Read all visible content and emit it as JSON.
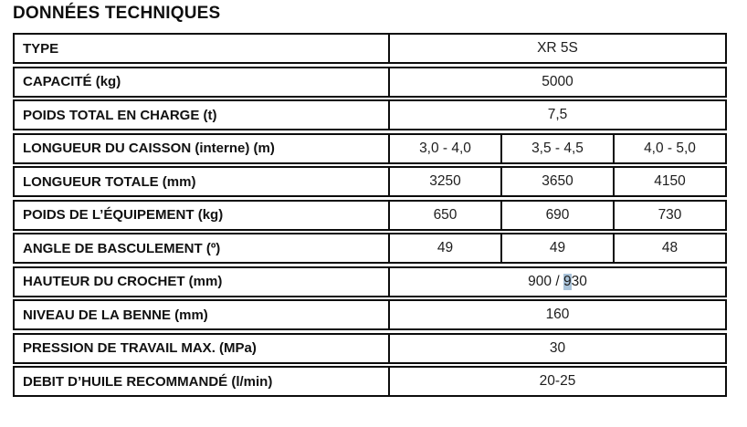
{
  "title": "DONNÉES TECHNIQUES",
  "colors": {
    "selection_highlight": "#a9c3da",
    "border": "#0c0c0c",
    "text": "#111111"
  },
  "table": {
    "rows": [
      {
        "label": "TYPE",
        "value": "XR 5S"
      },
      {
        "label": "CAPACITÉ (kg)",
        "value": "5000"
      },
      {
        "label": "POIDS TOTAL EN CHARGE (t)",
        "value": "7,5"
      },
      {
        "label": "LONGUEUR DU CAISSON (interne) (m)",
        "values": [
          "3,0 - 4,0",
          "3,5 - 4,5",
          "4,0 - 5,0"
        ]
      },
      {
        "label": "LONGUEUR TOTALE (mm)",
        "values": [
          "3250",
          "3650",
          "4150"
        ]
      },
      {
        "label": "POIDS DE L’ÉQUIPEMENT (kg)",
        "values": [
          "650",
          "690",
          "730"
        ]
      },
      {
        "label": "ANGLE DE BASCULEMENT (º)",
        "values": [
          "49",
          "49",
          "48"
        ]
      },
      {
        "label": "HAUTEUR DU CROCHET (mm)",
        "value_prefix": "900 / ",
        "value_highlight": "9",
        "value_suffix": "30"
      },
      {
        "label": "NIVEAU DE LA BENNE (mm)",
        "value": "160"
      },
      {
        "label": "PRESSION DE TRAVAIL MAX. (MPa)",
        "value": "30"
      },
      {
        "label": "DEBIT D’HUILE RECOMMANDÉ (l/min)",
        "value": "20-25"
      }
    ]
  }
}
